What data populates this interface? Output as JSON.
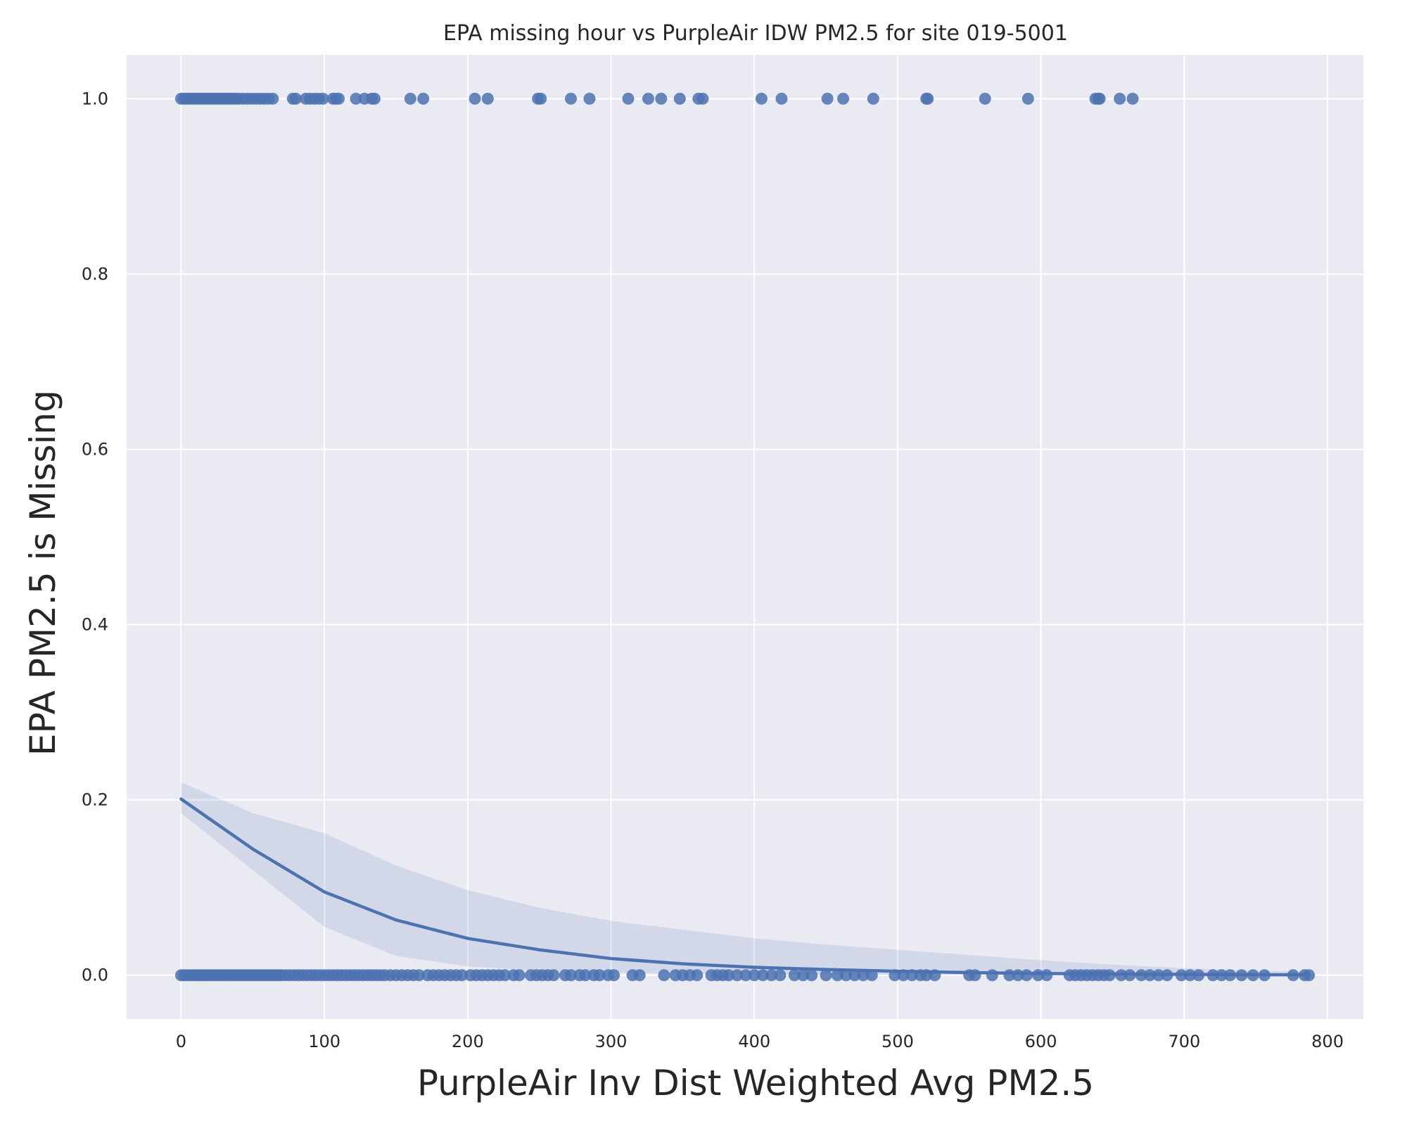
{
  "chart_data": {
    "type": "scatter",
    "title": "EPA missing hour vs PurpleAir IDW PM2.5 for site 019-5001",
    "xlabel": "PurpleAir Inv Dist Weighted Avg PM2.5",
    "ylabel": "EPA PM2.5 is Missing",
    "xlim": [
      -38,
      825
    ],
    "ylim": [
      -0.05,
      1.05
    ],
    "xticks": [
      0,
      100,
      200,
      300,
      400,
      500,
      600,
      700,
      800
    ],
    "xtick_labels": [
      "0",
      "100",
      "200",
      "300",
      "400",
      "500",
      "600",
      "700",
      "800"
    ],
    "yticks": [
      0.0,
      0.2,
      0.4,
      0.6,
      0.8,
      1.0
    ],
    "ytick_labels": [
      "0.0",
      "0.2",
      "0.4",
      "0.6",
      "0.8",
      "1.0"
    ],
    "grid": true,
    "background_color": "#eaeaf2",
    "grid_color": "#ffffff",
    "point_color": "#4c72b0",
    "line_color": "#4c72b0",
    "ci_color": "#4c72b0",
    "series": [
      {
        "kind": "points",
        "y": 1,
        "x": [
          0,
          2,
          4,
          6,
          8,
          10,
          12,
          14,
          16,
          18,
          20,
          22,
          24,
          26,
          28,
          30,
          32,
          34,
          36,
          38,
          40,
          43,
          46,
          49,
          52,
          55,
          58,
          61,
          64,
          78,
          80,
          87,
          90,
          93,
          96,
          99,
          106,
          108,
          110,
          122,
          128,
          133,
          135,
          160,
          169,
          205,
          214,
          249,
          251,
          272,
          285,
          312,
          326,
          335,
          348,
          361,
          364,
          405,
          419,
          451,
          462,
          483,
          520,
          521,
          561,
          591,
          638,
          640,
          641,
          655,
          664
        ]
      },
      {
        "kind": "points",
        "y": 0,
        "x": [
          0,
          2,
          4,
          6,
          8,
          10,
          12,
          14,
          16,
          18,
          20,
          22,
          24,
          26,
          28,
          30,
          32,
          34,
          36,
          38,
          40,
          42,
          44,
          46,
          48,
          50,
          52,
          54,
          56,
          58,
          60,
          62,
          64,
          66,
          68,
          70,
          73,
          76,
          79,
          82,
          85,
          88,
          91,
          94,
          97,
          100,
          103,
          106,
          109,
          112,
          115,
          118,
          121,
          124,
          127,
          130,
          133,
          136,
          139,
          142,
          146,
          150,
          154,
          158,
          162,
          166,
          172,
          176,
          180,
          184,
          188,
          192,
          196,
          202,
          206,
          210,
          214,
          218,
          222,
          226,
          232,
          236,
          244,
          248,
          252,
          256,
          260,
          268,
          272,
          278,
          282,
          288,
          292,
          298,
          302,
          315,
          320,
          337,
          345,
          350,
          355,
          360,
          370,
          374,
          378,
          382,
          388,
          394,
          400,
          406,
          412,
          418,
          428,
          434,
          440,
          450,
          458,
          464,
          470,
          476,
          482,
          498,
          504,
          510,
          516,
          520,
          526,
          550,
          554,
          566,
          578,
          584,
          590,
          598,
          604,
          620,
          624,
          628,
          632,
          636,
          640,
          644,
          648,
          656,
          662,
          670,
          676,
          682,
          688,
          698,
          704,
          710,
          720,
          726,
          732,
          740,
          748,
          756,
          776,
          784,
          787
        ]
      }
    ],
    "fit_line": {
      "x": [
        0,
        50,
        100,
        150,
        200,
        250,
        300,
        350,
        400,
        450,
        500,
        550,
        600,
        650,
        700,
        750,
        787
      ],
      "y": [
        0.201,
        0.144,
        0.095,
        0.063,
        0.042,
        0.029,
        0.019,
        0.013,
        0.009,
        0.0065,
        0.0045,
        0.003,
        0.002,
        0.0014,
        0.001,
        0.0006,
        0.0004
      ]
    },
    "ci_band": {
      "x": [
        0,
        50,
        100,
        150,
        200,
        250,
        300,
        350,
        400,
        450,
        500,
        550,
        600,
        650,
        700,
        750,
        787
      ],
      "upper": [
        0.22,
        0.185,
        0.162,
        0.125,
        0.097,
        0.077,
        0.062,
        0.052,
        0.042,
        0.035,
        0.029,
        0.023,
        0.017,
        0.012,
        0.008,
        0.005,
        0.004
      ],
      "lower": [
        0.185,
        0.12,
        0.055,
        0.022,
        0.01,
        0.005,
        0.003,
        0.0018,
        0.001,
        0.0006,
        0.0003,
        0.0002,
        0.0001,
        0,
        0,
        0,
        0
      ]
    }
  }
}
